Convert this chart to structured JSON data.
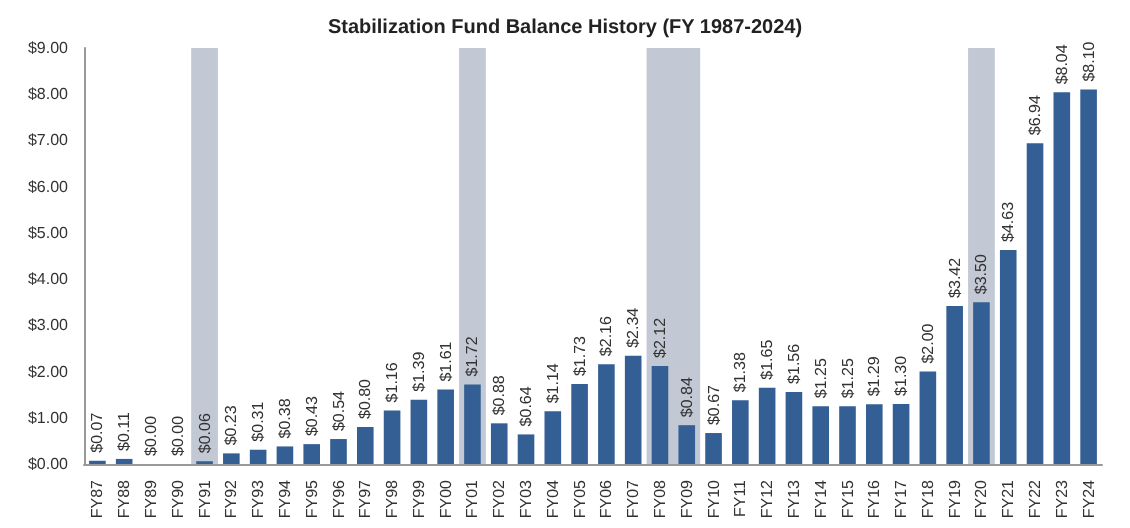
{
  "chart_data": {
    "type": "bar",
    "title": "Stabilization Fund Balance History (FY 1987-2024)",
    "categories": [
      "FY87",
      "FY88",
      "FY89",
      "FY90",
      "FY91",
      "FY92",
      "FY93",
      "FY94",
      "FY95",
      "FY96",
      "FY97",
      "FY98",
      "FY99",
      "FY00",
      "FY01",
      "FY02",
      "FY03",
      "FY04",
      "FY05",
      "FY06",
      "FY07",
      "FY08",
      "FY09",
      "FY10",
      "FY11",
      "FY12",
      "FY13",
      "FY14",
      "FY15",
      "FY16",
      "FY17",
      "FY18",
      "FY19",
      "FY20",
      "FY21",
      "FY22",
      "FY23",
      "FY24"
    ],
    "values": [
      0.07,
      0.11,
      0.0,
      0.0,
      0.06,
      0.23,
      0.31,
      0.38,
      0.43,
      0.54,
      0.8,
      1.16,
      1.39,
      1.61,
      1.72,
      0.88,
      0.64,
      1.14,
      1.73,
      2.16,
      2.34,
      2.12,
      0.84,
      0.67,
      1.38,
      1.65,
      1.56,
      1.25,
      1.25,
      1.29,
      1.3,
      2.0,
      3.42,
      3.5,
      4.63,
      6.94,
      8.04,
      8.1
    ],
    "value_labels": [
      "$0.07",
      "$0.11",
      "$0.00",
      "$0.00",
      "$0.06",
      "$0.23",
      "$0.31",
      "$0.38",
      "$0.43",
      "$0.54",
      "$0.80",
      "$1.16",
      "$1.39",
      "$1.61",
      "$1.72",
      "$0.88",
      "$0.64",
      "$1.14",
      "$1.73",
      "$2.16",
      "$2.34",
      "$2.12",
      "$0.84",
      "$0.67",
      "$1.38",
      "$1.65",
      "$1.56",
      "$1.25",
      "$1.25",
      "$1.29",
      "$1.30",
      "$2.00",
      "$3.42",
      "$3.50",
      "$4.63",
      "$6.94",
      "$8.04",
      "$8.10"
    ],
    "color": "#335f94",
    "ylim": [
      0,
      9
    ],
    "yticks": [
      {
        "value": 0,
        "label": "$0.00"
      },
      {
        "value": 1,
        "label": "$1.00"
      },
      {
        "value": 2,
        "label": "$2.00"
      },
      {
        "value": 3,
        "label": "$3.00"
      },
      {
        "value": 4,
        "label": "$4.00"
      },
      {
        "value": 5,
        "label": "$5.00"
      },
      {
        "value": 6,
        "label": "$6.00"
      },
      {
        "value": 7,
        "label": "$7.00"
      },
      {
        "value": 8,
        "label": "$8.00"
      },
      {
        "value": 9,
        "label": "$9.00"
      }
    ],
    "bands": [
      {
        "axis": "x",
        "from": "FY91",
        "to": "FY91",
        "color": "#c3c9d4"
      },
      {
        "axis": "x",
        "from": "FY01",
        "to": "FY01",
        "color": "#c3c9d4"
      },
      {
        "axis": "x",
        "from": "FY08",
        "to": "FY09",
        "color": "#c3c9d4"
      },
      {
        "axis": "x",
        "from": "FY20",
        "to": "FY20",
        "color": "#c3c9d4"
      }
    ],
    "grid": false
  }
}
